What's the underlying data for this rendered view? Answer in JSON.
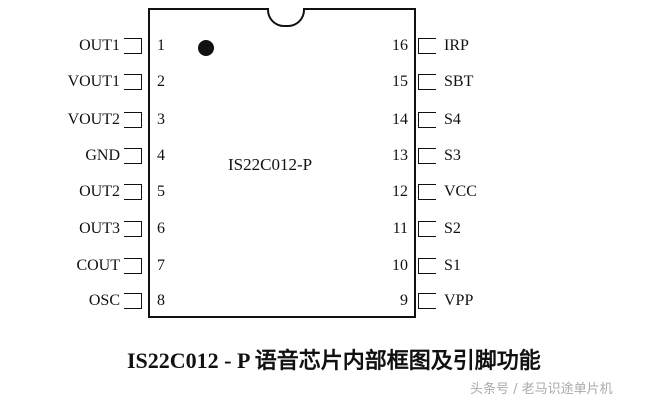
{
  "chip": {
    "name": "IS22C012-P"
  },
  "left_pins": [
    {
      "num": "1",
      "label": "OUT1"
    },
    {
      "num": "2",
      "label": "VOUT1"
    },
    {
      "num": "3",
      "label": "VOUT2"
    },
    {
      "num": "4",
      "label": "GND"
    },
    {
      "num": "5",
      "label": "OUT2"
    },
    {
      "num": "6",
      "label": "OUT3"
    },
    {
      "num": "7",
      "label": "COUT"
    },
    {
      "num": "8",
      "label": "OSC"
    }
  ],
  "right_pins": [
    {
      "num": "16",
      "label": "IRP"
    },
    {
      "num": "15",
      "label": "SBT"
    },
    {
      "num": "14",
      "label": "S4"
    },
    {
      "num": "13",
      "label": "S3"
    },
    {
      "num": "12",
      "label": "VCC"
    },
    {
      "num": "11",
      "label": "S2"
    },
    {
      "num": "10",
      "label": "S1"
    },
    {
      "num": "9",
      "label": "VPP"
    }
  ],
  "caption": "IS22C012 - P 语音芯片内部框图及引脚功能",
  "watermark": "头条号 / 老马识途单片机"
}
